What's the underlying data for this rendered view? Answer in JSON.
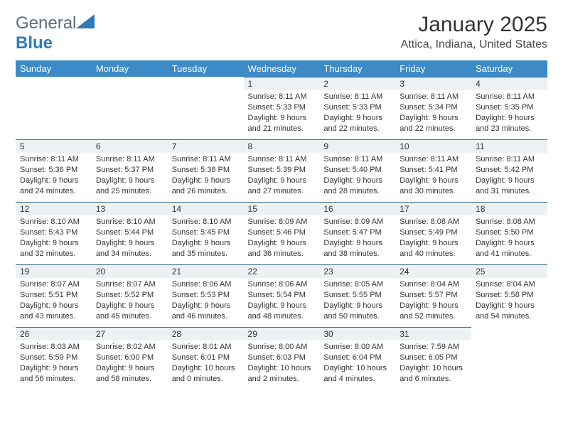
{
  "logo": {
    "text1": "General",
    "text2": "Blue"
  },
  "title": "January 2025",
  "location": "Attica, Indiana, United States",
  "header_bg": "#3d8ac7",
  "header_fg": "#ffffff",
  "daynum_bg": "#eef1f3",
  "daynum_border": "#3d6a8a",
  "weekdays": [
    "Sunday",
    "Monday",
    "Tuesday",
    "Wednesday",
    "Thursday",
    "Friday",
    "Saturday"
  ],
  "weeks": [
    [
      null,
      null,
      null,
      {
        "n": "1",
        "sr": "8:11 AM",
        "ss": "5:33 PM",
        "dl": "9 hours and 21 minutes."
      },
      {
        "n": "2",
        "sr": "8:11 AM",
        "ss": "5:33 PM",
        "dl": "9 hours and 22 minutes."
      },
      {
        "n": "3",
        "sr": "8:11 AM",
        "ss": "5:34 PM",
        "dl": "9 hours and 22 minutes."
      },
      {
        "n": "4",
        "sr": "8:11 AM",
        "ss": "5:35 PM",
        "dl": "9 hours and 23 minutes."
      }
    ],
    [
      {
        "n": "5",
        "sr": "8:11 AM",
        "ss": "5:36 PM",
        "dl": "9 hours and 24 minutes."
      },
      {
        "n": "6",
        "sr": "8:11 AM",
        "ss": "5:37 PM",
        "dl": "9 hours and 25 minutes."
      },
      {
        "n": "7",
        "sr": "8:11 AM",
        "ss": "5:38 PM",
        "dl": "9 hours and 26 minutes."
      },
      {
        "n": "8",
        "sr": "8:11 AM",
        "ss": "5:39 PM",
        "dl": "9 hours and 27 minutes."
      },
      {
        "n": "9",
        "sr": "8:11 AM",
        "ss": "5:40 PM",
        "dl": "9 hours and 28 minutes."
      },
      {
        "n": "10",
        "sr": "8:11 AM",
        "ss": "5:41 PM",
        "dl": "9 hours and 30 minutes."
      },
      {
        "n": "11",
        "sr": "8:11 AM",
        "ss": "5:42 PM",
        "dl": "9 hours and 31 minutes."
      }
    ],
    [
      {
        "n": "12",
        "sr": "8:10 AM",
        "ss": "5:43 PM",
        "dl": "9 hours and 32 minutes."
      },
      {
        "n": "13",
        "sr": "8:10 AM",
        "ss": "5:44 PM",
        "dl": "9 hours and 34 minutes."
      },
      {
        "n": "14",
        "sr": "8:10 AM",
        "ss": "5:45 PM",
        "dl": "9 hours and 35 minutes."
      },
      {
        "n": "15",
        "sr": "8:09 AM",
        "ss": "5:46 PM",
        "dl": "9 hours and 36 minutes."
      },
      {
        "n": "16",
        "sr": "8:09 AM",
        "ss": "5:47 PM",
        "dl": "9 hours and 38 minutes."
      },
      {
        "n": "17",
        "sr": "8:08 AM",
        "ss": "5:49 PM",
        "dl": "9 hours and 40 minutes."
      },
      {
        "n": "18",
        "sr": "8:08 AM",
        "ss": "5:50 PM",
        "dl": "9 hours and 41 minutes."
      }
    ],
    [
      {
        "n": "19",
        "sr": "8:07 AM",
        "ss": "5:51 PM",
        "dl": "9 hours and 43 minutes."
      },
      {
        "n": "20",
        "sr": "8:07 AM",
        "ss": "5:52 PM",
        "dl": "9 hours and 45 minutes."
      },
      {
        "n": "21",
        "sr": "8:06 AM",
        "ss": "5:53 PM",
        "dl": "9 hours and 46 minutes."
      },
      {
        "n": "22",
        "sr": "8:06 AM",
        "ss": "5:54 PM",
        "dl": "9 hours and 48 minutes."
      },
      {
        "n": "23",
        "sr": "8:05 AM",
        "ss": "5:55 PM",
        "dl": "9 hours and 50 minutes."
      },
      {
        "n": "24",
        "sr": "8:04 AM",
        "ss": "5:57 PM",
        "dl": "9 hours and 52 minutes."
      },
      {
        "n": "25",
        "sr": "8:04 AM",
        "ss": "5:58 PM",
        "dl": "9 hours and 54 minutes."
      }
    ],
    [
      {
        "n": "26",
        "sr": "8:03 AM",
        "ss": "5:59 PM",
        "dl": "9 hours and 56 minutes."
      },
      {
        "n": "27",
        "sr": "8:02 AM",
        "ss": "6:00 PM",
        "dl": "9 hours and 58 minutes."
      },
      {
        "n": "28",
        "sr": "8:01 AM",
        "ss": "6:01 PM",
        "dl": "10 hours and 0 minutes."
      },
      {
        "n": "29",
        "sr": "8:00 AM",
        "ss": "6:03 PM",
        "dl": "10 hours and 2 minutes."
      },
      {
        "n": "30",
        "sr": "8:00 AM",
        "ss": "6:04 PM",
        "dl": "10 hours and 4 minutes."
      },
      {
        "n": "31",
        "sr": "7:59 AM",
        "ss": "6:05 PM",
        "dl": "10 hours and 6 minutes."
      },
      null
    ]
  ],
  "labels": {
    "sunrise": "Sunrise:",
    "sunset": "Sunset:",
    "daylight": "Daylight:"
  }
}
